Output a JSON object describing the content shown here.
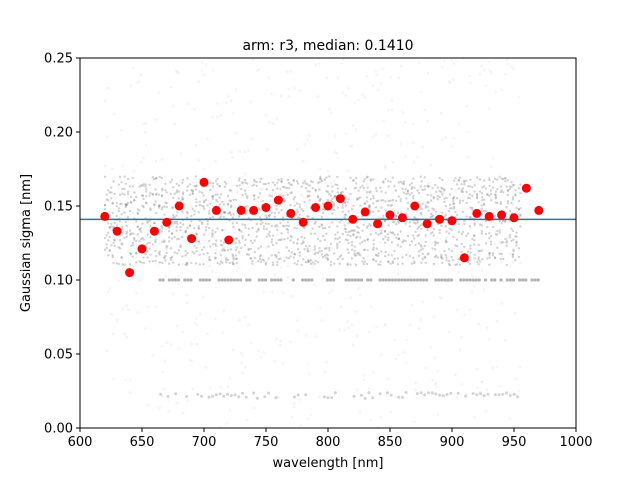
{
  "chart_data": {
    "type": "scatter",
    "title": "arm: r3, median: 0.1410",
    "xlabel": "wavelength [nm]",
    "ylabel": "Gaussian sigma [nm]",
    "xlim": [
      600,
      1000
    ],
    "ylim": [
      0.0,
      0.25
    ],
    "xticks": [
      600,
      650,
      700,
      750,
      800,
      850,
      900,
      950,
      1000
    ],
    "xtick_labels": [
      "600",
      "650",
      "700",
      "750",
      "800",
      "850",
      "900",
      "950",
      "1000"
    ],
    "yticks": [
      0.0,
      0.05,
      0.1,
      0.15,
      0.2,
      0.25
    ],
    "ytick_labels": [
      "0.00",
      "0.05",
      "0.10",
      "0.15",
      "0.20",
      "0.25"
    ],
    "grid": false,
    "median_line": {
      "y": 0.141,
      "color": "#1f77b4"
    },
    "binned_medians": {
      "color": "#ff0000",
      "x": [
        620,
        630,
        640,
        650,
        660,
        670,
        680,
        690,
        700,
        710,
        720,
        730,
        740,
        750,
        760,
        770,
        780,
        790,
        800,
        810,
        820,
        830,
        840,
        850,
        860,
        870,
        880,
        890,
        900,
        910,
        920,
        930,
        940,
        950,
        960,
        970
      ],
      "y": [
        0.143,
        0.133,
        0.105,
        0.121,
        0.133,
        0.139,
        0.15,
        0.128,
        0.166,
        0.147,
        0.127,
        0.147,
        0.147,
        0.149,
        0.154,
        0.145,
        0.139,
        0.149,
        0.15,
        0.155,
        0.141,
        0.146,
        0.138,
        0.144,
        0.142,
        0.15,
        0.138,
        0.141,
        0.14,
        0.115,
        0.145,
        0.143,
        0.144,
        0.142,
        0.162,
        0.147
      ]
    },
    "raw_points": {
      "color": "#808080",
      "x_range": [
        620,
        970
      ],
      "core_range": [
        0.11,
        0.17
      ],
      "band_level": 0.1,
      "low_band_level": 0.022
    }
  }
}
